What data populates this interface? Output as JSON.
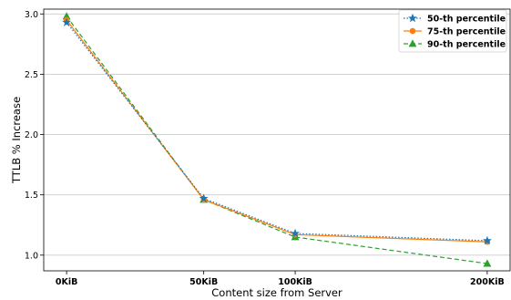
{
  "chart_data": {
    "type": "line",
    "xlabel": "Content size from Server",
    "ylabel": "TTLB % Increase",
    "x": [
      0,
      50,
      100,
      200
    ],
    "x_tick_labels": [
      "0KiB",
      "50KiB",
      "100KiB",
      "200KiB"
    ],
    "ylim": [
      0.87,
      3.04
    ],
    "y_ticks": [
      1.0,
      1.5,
      2.0,
      2.5,
      3.0
    ],
    "y_tick_labels": [
      "1.0",
      "1.5",
      "2.0",
      "2.5",
      "3.0"
    ],
    "grid": "horizontal",
    "legend_position": "top-right",
    "series": [
      {
        "name": "50-th percentile",
        "values": [
          2.93,
          1.47,
          1.18,
          1.12
        ],
        "color": "#1f77b4",
        "line_style": "dotted",
        "marker": "star"
      },
      {
        "name": "75-th percentile",
        "values": [
          2.95,
          1.46,
          1.17,
          1.11
        ],
        "color": "#ff7f0e",
        "line_style": "solid",
        "marker": "circle"
      },
      {
        "name": "90-th percentile",
        "values": [
          2.98,
          1.46,
          1.15,
          0.93
        ],
        "color": "#2ca02c",
        "line_style": "dashed",
        "marker": "triangle"
      }
    ]
  }
}
